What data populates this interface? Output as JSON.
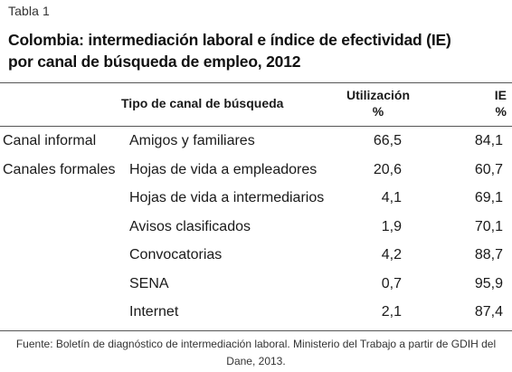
{
  "table_label": "Tabla 1",
  "title_line1": "Colombia: intermediación laboral e índice de efectividad (IE)",
  "title_line2": "por canal de búsqueda de empleo, 2012",
  "headers": {
    "channel_type": "Tipo de canal de búsqueda",
    "utilization": "Utilización",
    "utilization_unit": "%",
    "ie": "IE",
    "ie_unit": "%"
  },
  "rows": [
    {
      "group": "Canal informal",
      "channel": "Amigos y familiares",
      "utilization": "66,5",
      "ie": "84,1"
    },
    {
      "group": "Canales formales",
      "channel": "Hojas de vida a empleadores",
      "utilization": "20,6",
      "ie": "60,7"
    },
    {
      "group": "",
      "channel": "Hojas de vida a intermediarios",
      "utilization": "4,1",
      "ie": "69,1"
    },
    {
      "group": "",
      "channel": "Avisos clasificados",
      "utilization": "1,9",
      "ie": "70,1"
    },
    {
      "group": "",
      "channel": "Convocatorias",
      "utilization": "4,2",
      "ie": "88,7"
    },
    {
      "group": "",
      "channel": "SENA",
      "utilization": "0,7",
      "ie": "95,9"
    },
    {
      "group": "",
      "channel": "Internet",
      "utilization": "2,1",
      "ie": "87,4"
    }
  ],
  "source_line1": "Fuente: Boletín de diagnóstico de intermediación laboral. Ministerio del Trabajo a partir de GDIH del",
  "source_line2": "Dane, 2013."
}
